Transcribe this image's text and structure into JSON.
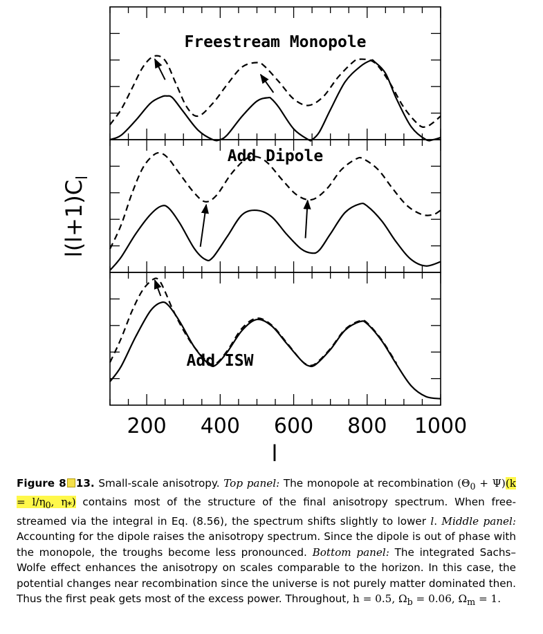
{
  "chart_data": {
    "type": "line",
    "xlabel": "l",
    "ylabel": "l(l+1)C",
    "ylabel_sub": "l",
    "xlim": [
      100,
      1000
    ],
    "x_ticks": [
      200,
      400,
      600,
      800,
      1000
    ],
    "y_ticks_labeled": false,
    "grid": false,
    "legend": "none",
    "panels": [
      {
        "title": "Freestream Monopole",
        "series": [
          {
            "style": "solid",
            "x": [
              100,
              130,
              170,
              210,
              240,
              255,
              270,
              300,
              340,
              380,
              400,
              420,
              460,
              500,
              530,
              540,
              560,
              600,
              640,
              650,
              670,
              700,
              740,
              780,
              810,
              820,
              850,
              880,
              920,
              960,
              980,
              1000
            ],
            "y": [
              0.0,
              0.1,
              0.45,
              0.85,
              1.0,
              1.02,
              0.98,
              0.65,
              0.22,
              0.0,
              0.0,
              0.12,
              0.55,
              0.9,
              0.98,
              0.95,
              0.75,
              0.25,
              0.0,
              0.0,
              0.18,
              0.7,
              1.35,
              1.7,
              1.85,
              1.82,
              1.55,
              0.95,
              0.3,
              0.0,
              0.0,
              0.05
            ]
          },
          {
            "style": "dashed",
            "x": [
              100,
              130,
              160,
              190,
              220,
              250,
              280,
              310,
              340,
              380,
              420,
              460,
              500,
              520,
              560,
              600,
              640,
              680,
              720,
              760,
              780,
              820,
              860,
              900,
              940,
              960,
              980,
              1000
            ],
            "y": [
              0.35,
              0.7,
              1.2,
              1.7,
              1.95,
              1.85,
              1.3,
              0.75,
              0.55,
              0.85,
              1.3,
              1.7,
              1.8,
              1.72,
              1.35,
              0.95,
              0.8,
              1.0,
              1.45,
              1.8,
              1.88,
              1.8,
              1.35,
              0.75,
              0.35,
              0.3,
              0.4,
              0.55
            ]
          }
        ],
        "arrows": [
          {
            "from": [
              250,
              1.4
            ],
            "to": [
              222,
              1.88
            ]
          },
          {
            "from": [
              545,
              1.1
            ],
            "to": [
              510,
              1.52
            ]
          }
        ]
      },
      {
        "title": "Add Dipole",
        "series": [
          {
            "style": "solid",
            "x": [
              100,
              130,
              170,
              210,
              240,
              260,
              290,
              330,
              360,
              380,
              420,
              460,
              500,
              540,
              580,
              620,
              650,
              670,
              700,
              740,
              780,
              800,
              840,
              880,
              920,
              960,
              1000
            ],
            "y": [
              0.05,
              0.35,
              0.9,
              1.35,
              1.55,
              1.5,
              1.15,
              0.55,
              0.3,
              0.35,
              0.85,
              1.35,
              1.45,
              1.3,
              0.9,
              0.55,
              0.45,
              0.52,
              0.9,
              1.4,
              1.6,
              1.55,
              1.2,
              0.7,
              0.3,
              0.15,
              0.25
            ]
          },
          {
            "style": "dashed",
            "x": [
              100,
              130,
              160,
              190,
              220,
              240,
              260,
              290,
              330,
              360,
              390,
              430,
              470,
              500,
              530,
              570,
              610,
              650,
              690,
              730,
              770,
              790,
              830,
              870,
              910,
              950,
              980,
              1000
            ],
            "y": [
              0.55,
              1.1,
              1.85,
              2.45,
              2.75,
              2.78,
              2.65,
              2.3,
              1.85,
              1.65,
              1.8,
              2.3,
              2.65,
              2.7,
              2.55,
              2.15,
              1.8,
              1.7,
              1.95,
              2.4,
              2.65,
              2.65,
              2.4,
              1.95,
              1.55,
              1.35,
              1.35,
              1.45
            ]
          }
        ],
        "arrows": [
          {
            "from": [
              346,
              0.6
            ],
            "to": [
              362,
              1.58
            ]
          },
          {
            "from": [
              632,
              0.8
            ],
            "to": [
              638,
              1.68
            ]
          }
        ]
      },
      {
        "title": "Add ISW",
        "series": [
          {
            "style": "solid",
            "x": [
              100,
              130,
              170,
              210,
              240,
              260,
              290,
              330,
              370,
              390,
              420,
              460,
              500,
              540,
              580,
              620,
              640,
              660,
              700,
              740,
              780,
              800,
              840,
              880,
              920,
              960,
              1000
            ],
            "y": [
              0.55,
              0.9,
              1.6,
              2.2,
              2.4,
              2.32,
              1.95,
              1.35,
              0.95,
              0.95,
              1.25,
              1.75,
              2.0,
              1.85,
              1.45,
              1.05,
              0.92,
              0.95,
              1.3,
              1.75,
              1.95,
              1.9,
              1.5,
              0.95,
              0.45,
              0.2,
              0.15
            ]
          },
          {
            "style": "dashed",
            "x": [
              100,
              130,
              160,
              190,
              220,
              235,
              250,
              270,
              300,
              330,
              370,
              390,
              420,
              460,
              500,
              540,
              580,
              620,
              640,
              660,
              700,
              740,
              780,
              800,
              840,
              880
            ],
            "y": [
              1.0,
              1.55,
              2.2,
              2.7,
              2.95,
              2.9,
              2.65,
              2.25,
              1.75,
              1.35,
              0.98,
              0.98,
              1.28,
              1.8,
              2.03,
              1.87,
              1.47,
              1.05,
              0.94,
              0.97,
              1.32,
              1.77,
              1.97,
              1.92,
              1.52,
              0.97
            ]
          }
        ],
        "arrows": [
          {
            "from": [
              238,
              2.55
            ],
            "to": [
              222,
              2.92
            ]
          }
        ]
      }
    ]
  },
  "caption": {
    "label_prefix": "Figure 8",
    "label_suffix": "13.",
    "t1": " Small-scale anisotropy. ",
    "p1": "Top panel:",
    "t2": " The monopole at recombination ",
    "m1": "(Θ",
    "m1_sub": "0",
    "m2": " + Ψ)",
    "hl": "(k = l/η",
    "hl_sub": "0",
    "hl2": ", η",
    "hl2_sub": "*",
    "hl3": ")",
    "t3": " contains most of the structure of the final anisotropy spectrum. When free-streamed via the integral in Eq. (8.56), the spectrum shifts slightly to lower ",
    "lvar": "l",
    "t4": ". ",
    "p2": "Middle panel:",
    "t5": " Accounting for the dipole raises the anisotropy spectrum. Since the dipole is out of phase with the monopole, the troughs become less pronounced. ",
    "p3": "Bottom panel:",
    "t6": " The integrated Sachs–Wolfe effect enhances the anisotropy on scales comparable to the horizon. In this case, the potential changes near recombination since the universe is not purely matter dominated then. Thus the first peak gets most of the excess power. Throughout, ",
    "m3": "h = 0.5, Ω",
    "m3_sub": "b",
    "m4": " = 0.06, Ω",
    "m4_sub": "m",
    "m5": " = 1."
  },
  "colors": {
    "line": "#000000",
    "highlight": "#fff84a",
    "annotation_icon": "#f4e04a"
  }
}
